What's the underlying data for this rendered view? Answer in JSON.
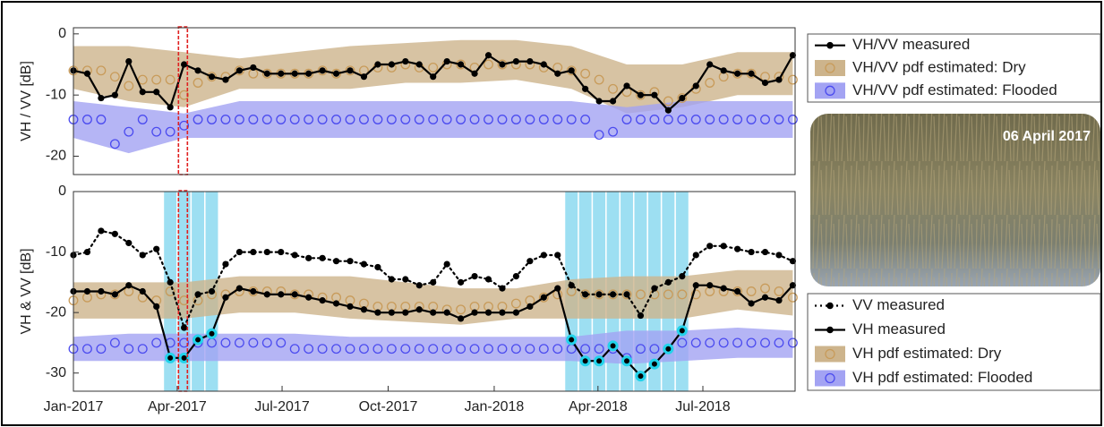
{
  "chart_data": [
    {
      "type": "line",
      "ylabel": "VH / VV [dB]",
      "x": [
        0,
        12,
        24,
        36,
        48,
        60,
        72,
        84,
        96,
        108,
        120,
        132,
        144,
        156,
        168,
        180,
        192,
        204,
        216,
        228,
        240,
        252,
        264,
        276,
        288,
        300,
        312,
        324,
        336,
        348,
        360,
        372,
        384,
        396,
        408,
        420,
        432,
        444,
        456,
        468,
        480,
        492,
        504,
        516,
        528,
        540,
        552,
        564,
        576,
        588,
        600,
        612,
        624
      ],
      "xlim": [
        0,
        626
      ],
      "ylim": [
        -23,
        1
      ],
      "yticks": [
        0,
        -10,
        -20
      ],
      "band_x": [
        0,
        48,
        96,
        144,
        192,
        240,
        288,
        336,
        384,
        432,
        480,
        528,
        576,
        624
      ],
      "series": [
        {
          "name": "VH/VV measured",
          "style": "line",
          "color": "#000000",
          "values": [
            -6,
            -6.5,
            -10.5,
            -10,
            -4.5,
            -9.5,
            -9.5,
            -12,
            -5,
            -6,
            -7,
            -7.5,
            -6,
            -5.5,
            -6.5,
            -6.5,
            -6.5,
            -6.5,
            -6,
            -6.5,
            -6,
            -7,
            -5,
            -5,
            -4.5,
            -5,
            -7,
            -4.5,
            -5,
            -6.5,
            -3.5,
            -5,
            -4.5,
            -4.5,
            -5,
            -6.5,
            -6,
            -9,
            -11,
            -11,
            -8.5,
            -10,
            -10,
            -12.5,
            -10.5,
            -8.5,
            -5,
            -6,
            -6.5,
            -6.5,
            -8,
            -7.5,
            -3.5
          ]
        },
        {
          "name": "VH/VV pdf estimated: Dry",
          "style": "circles",
          "color": "#c89b5a",
          "band_color": "#cdb48c",
          "values": [
            -6,
            -6,
            -6,
            -7,
            -8.5,
            -7.5,
            -7.5,
            -7.5,
            -10,
            -8,
            -7,
            -7,
            -6,
            -6.5,
            -6.5,
            -6.5,
            -6.5,
            -6.5,
            -6,
            -6.5,
            -6,
            -6,
            -5.5,
            -5.5,
            -5,
            -5.5,
            -5.5,
            -5,
            -5,
            -5.5,
            -5,
            -5,
            -5,
            -5,
            -5.5,
            -5.5,
            -6,
            -6.5,
            -7.5,
            -9,
            -9.5,
            -10,
            -9.5,
            -11,
            -10.5,
            -9,
            -8,
            -7,
            -6.5,
            -6.5,
            -7,
            -7,
            -7.5
          ],
          "band_upper": [
            -2,
            -2,
            -3,
            -4,
            -3,
            -2,
            -1.5,
            -1,
            -1,
            -2,
            -5,
            -5,
            -3,
            -3
          ],
          "band_lower": [
            -9,
            -11,
            -12,
            -9,
            -9,
            -9,
            -8,
            -8,
            -7.5,
            -9,
            -13,
            -12,
            -10,
            -10
          ]
        },
        {
          "name": "VH/VV pdf estimated: Flooded",
          "style": "circles",
          "color": "#4b4bef",
          "band_color": "#a3a3f3",
          "values": [
            -14,
            -14,
            -14,
            -18,
            -16,
            -14,
            -16,
            -16,
            -15,
            -14,
            -14,
            -14,
            -14,
            -14,
            -14,
            -14,
            -14,
            -14,
            -14,
            -14,
            -14,
            -14,
            -14,
            -14,
            -14,
            -14,
            -14,
            -14,
            -14,
            -14,
            -14,
            -14,
            -14,
            -14,
            -14,
            -14,
            -14,
            -14,
            -16.5,
            -16,
            -14,
            -14,
            -14,
            -14,
            -14,
            -14,
            -14,
            -14,
            -14,
            -14,
            -14,
            -14,
            -14
          ],
          "band_upper": [
            -11,
            -12,
            -13,
            -11,
            -11,
            -11,
            -11,
            -11,
            -11,
            -11,
            -12,
            -11,
            -11,
            -11
          ],
          "band_lower": [
            -17,
            -19.5,
            -17,
            -17,
            -17,
            -17,
            -17,
            -17,
            -17,
            -17,
            -17,
            -17,
            -17,
            -17
          ]
        }
      ]
    },
    {
      "type": "line",
      "ylabel": "VH & VV [dB]",
      "x": [
        0,
        12,
        24,
        36,
        48,
        60,
        72,
        84,
        96,
        108,
        120,
        132,
        144,
        156,
        168,
        180,
        192,
        204,
        216,
        228,
        240,
        252,
        264,
        276,
        288,
        300,
        312,
        324,
        336,
        348,
        360,
        372,
        384,
        396,
        408,
        420,
        432,
        444,
        456,
        468,
        480,
        492,
        504,
        516,
        528,
        540,
        552,
        564,
        576,
        588,
        600,
        612,
        624
      ],
      "xlim": [
        0,
        626
      ],
      "ylim": [
        -33,
        0
      ],
      "yticks": [
        0,
        -10,
        -20,
        -30
      ],
      "xticks": [
        {
          "value": 0,
          "label": "Jan-2017"
        },
        {
          "value": 90,
          "label": "Apr-2017"
        },
        {
          "value": 181,
          "label": "Jul-2017"
        },
        {
          "value": 273,
          "label": "Oct-2017"
        },
        {
          "value": 365,
          "label": "Jan-2018"
        },
        {
          "value": 455,
          "label": "Apr-2018"
        },
        {
          "value": 546,
          "label": "Jul-2018"
        }
      ],
      "flood_dates": [
        84,
        96,
        108,
        120,
        432,
        444,
        456,
        468,
        480,
        492,
        504,
        516,
        528
      ],
      "band_x": [
        0,
        48,
        96,
        144,
        192,
        240,
        288,
        336,
        384,
        432,
        480,
        528,
        576,
        624
      ],
      "series": [
        {
          "name": "VV measured",
          "style": "dotted-line",
          "color": "#000000",
          "values": [
            -10.5,
            -10,
            -6.5,
            -7,
            -8.5,
            -10.5,
            -9.5,
            -15,
            -22.5,
            -17,
            -16.5,
            -12,
            -10,
            -10,
            -10,
            -10,
            -10.5,
            -11,
            -11,
            -11.5,
            -11.5,
            -12,
            -12.5,
            -14.5,
            -14.5,
            -15.5,
            -15,
            -12,
            -15,
            -14,
            -14.5,
            -16,
            -14,
            -11.5,
            -10.5,
            -10.5,
            -15.5,
            -17,
            -17,
            -17,
            -17,
            -20.5,
            -16,
            -15,
            -14,
            -10.5,
            -9,
            -9,
            -9.5,
            -10,
            -10,
            -10.5,
            -11.5
          ]
        },
        {
          "name": "VH measured",
          "style": "line",
          "color": "#000000",
          "flood_color": "#22d3ea",
          "values": [
            -16.5,
            -16.5,
            -16.5,
            -17,
            -15.5,
            -16.5,
            -19,
            -27.5,
            -27.5,
            -24.5,
            -23.5,
            -17.5,
            -16,
            -16.5,
            -17,
            -17,
            -17,
            -17.5,
            -18,
            -18.5,
            -19,
            -19.5,
            -20,
            -20,
            -20,
            -19.5,
            -20,
            -20,
            -21,
            -20,
            -20,
            -20,
            -20,
            -19,
            -17.5,
            -16,
            -24.5,
            -28,
            -28,
            -25.5,
            -28,
            -30.5,
            -28.5,
            -26,
            -23,
            -15.5,
            -15.5,
            -16,
            -16.5,
            -18.5,
            -17.5,
            -18,
            -15.5
          ]
        },
        {
          "name": "VH pdf estimated: Dry",
          "style": "circles",
          "color": "#c89b5a",
          "band_color": "#cdb48c",
          "values": [
            -18,
            -17.5,
            -17,
            -17,
            -16.5,
            -17.5,
            -18,
            -16.5,
            -18,
            -18,
            -17,
            -17,
            -16.5,
            -16.5,
            -16.5,
            -16.5,
            -17,
            -17,
            -17.5,
            -17.5,
            -18,
            -18.5,
            -19,
            -19,
            -19,
            -19,
            -19,
            -19.5,
            -19.5,
            -19,
            -19,
            -19,
            -18.5,
            -18,
            -17.5,
            -17,
            -16.5,
            -17,
            -17,
            -17,
            -17,
            -17,
            -17,
            -17,
            -17,
            -17,
            -16.5,
            -16.5,
            -16.5,
            -16.5,
            -16,
            -16.5,
            -17.5
          ],
          "band_upper": [
            -15,
            -15,
            -15,
            -14,
            -14,
            -14,
            -15,
            -16,
            -16,
            -14.5,
            -14,
            -14,
            -13,
            -13
          ],
          "band_lower": [
            -21,
            -21,
            -21,
            -20,
            -20,
            -21,
            -21.5,
            -22,
            -21,
            -21,
            -21,
            -21,
            -19.5,
            -20.5
          ]
        },
        {
          "name": "VH pdf estimated: Flooded",
          "style": "circles",
          "color": "#4b4bef",
          "band_color": "#a3a3f3",
          "values": [
            -26,
            -26,
            -26,
            -25,
            -26,
            -26,
            -25,
            -25,
            -25,
            -25,
            -25,
            -25,
            -25,
            -25,
            -25,
            -25,
            -26,
            -26,
            -26,
            -26,
            -26,
            -26,
            -26,
            -26,
            -26,
            -26,
            -26,
            -26,
            -26,
            -26,
            -26,
            -26,
            -26,
            -26,
            -26,
            -26,
            -26,
            -26,
            -26,
            -26,
            -27.5,
            -26,
            -26,
            -26,
            -25,
            -25,
            -25,
            -25,
            -25,
            -25,
            -25,
            -25,
            -25
          ],
          "band_upper": [
            -24,
            -23.5,
            -23.5,
            -23.5,
            -23.5,
            -24,
            -24,
            -24,
            -24,
            -24,
            -23,
            -23,
            -22.5,
            -23
          ],
          "band_lower": [
            -28,
            -28,
            -28,
            -28,
            -28,
            -28,
            -28,
            -28,
            -28,
            -28,
            -28.5,
            -28,
            -27.5,
            -27.5
          ]
        }
      ]
    }
  ],
  "photo": {
    "label": "06 April 2017",
    "date": 95
  }
}
